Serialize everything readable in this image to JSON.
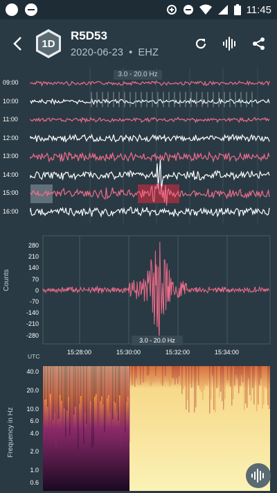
{
  "status_bar": {
    "time": "11:45",
    "icons": [
      "notification-dot-icon",
      "minus-circle-icon",
      "data-saver-icon",
      "dnd-icon",
      "wifi-icon",
      "signal-icon",
      "battery-icon"
    ]
  },
  "header": {
    "badge": "1D",
    "station": "R5D53",
    "date": "2020-06-23",
    "separator": "•",
    "channel": "EHZ",
    "icons": [
      "back-icon",
      "refresh-icon",
      "waveform-icon",
      "share-icon"
    ]
  },
  "helicorder": {
    "filter": "3.0 - 20.0 Hz",
    "rows": [
      {
        "time": "09:00",
        "color": "#f06d8a"
      },
      {
        "time": "10:00",
        "color": "#ffffff"
      },
      {
        "time": "11:00",
        "color": "#f06d8a"
      },
      {
        "time": "12:00",
        "color": "#ffffff"
      },
      {
        "time": "13:00",
        "color": "#f06d8a"
      },
      {
        "time": "14:00",
        "color": "#ffffff"
      },
      {
        "time": "15:00",
        "color": "#f06d8a"
      },
      {
        "time": "16:00",
        "color": "#ffffff"
      }
    ]
  },
  "waveform": {
    "ylabel": "Counts",
    "yticks": [
      "280",
      "210",
      "140",
      "70",
      "0",
      "-70",
      "-140",
      "-210",
      "-280"
    ],
    "xticks": [
      "15:28:00",
      "15:30:00",
      "15:32:00",
      "15:34:00"
    ],
    "utc_label": "UTC",
    "filter": "3.0 - 20.0 Hz",
    "trace_color": "#f06d8a"
  },
  "spectrogram": {
    "ylabel": "Frequency in Hz",
    "yticks": [
      "40.0",
      "20.0",
      "10.0",
      "6.0",
      "4.0",
      "2.0",
      "1.0",
      "0.6"
    ]
  },
  "fab": {
    "icon": "waveform-icon"
  }
}
